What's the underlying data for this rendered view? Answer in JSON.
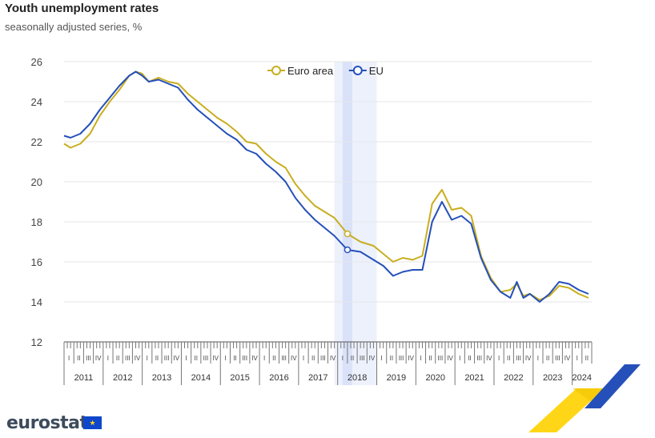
{
  "header": {
    "title": "Youth unemployment rates",
    "subtitle": "seasonally adjusted series, %"
  },
  "brand": {
    "logo_text": "eurostat",
    "flag_icon": "eu-flag-icon"
  },
  "colors": {
    "euro_area": "#c9ae1f",
    "eu": "#2550b9",
    "highlight": "#e6ecfb",
    "grid": "#e6e6e6"
  },
  "chart_data": {
    "type": "line",
    "title": "Youth unemployment rates",
    "subtitle": "seasonally adjusted series, %",
    "xlabel": "",
    "ylabel": "",
    "ylim": [
      12,
      26
    ],
    "yticks": [
      12,
      14,
      16,
      18,
      20,
      22,
      24,
      26
    ],
    "grid": true,
    "legend_position": "top-center",
    "x_start": "2011-01",
    "x_end": "2024-06",
    "years": [
      "2011",
      "2012",
      "2013",
      "2014",
      "2015",
      "2016",
      "2017",
      "2018",
      "2019",
      "2020",
      "2021",
      "2022",
      "2023",
      "2024"
    ],
    "quarters": [
      "I",
      "II",
      "III",
      "IV"
    ],
    "highlight": {
      "from": "2017-12",
      "to": "2018-12",
      "marker": "2018-04"
    },
    "series": [
      {
        "name": "Euro area",
        "color": "#c9ae1f",
        "points": [
          [
            "2011-01",
            21.9
          ],
          [
            "2011-03",
            21.7
          ],
          [
            "2011-06",
            21.9
          ],
          [
            "2011-09",
            22.4
          ],
          [
            "2011-12",
            23.3
          ],
          [
            "2012-03",
            24.0
          ],
          [
            "2012-06",
            24.6
          ],
          [
            "2012-09",
            25.3
          ],
          [
            "2012-11",
            25.5
          ],
          [
            "2013-01",
            25.4
          ],
          [
            "2013-03",
            25.0
          ],
          [
            "2013-06",
            25.2
          ],
          [
            "2013-09",
            25.0
          ],
          [
            "2013-12",
            24.9
          ],
          [
            "2014-03",
            24.4
          ],
          [
            "2014-06",
            24.0
          ],
          [
            "2014-09",
            23.6
          ],
          [
            "2014-12",
            23.2
          ],
          [
            "2015-03",
            22.9
          ],
          [
            "2015-06",
            22.5
          ],
          [
            "2015-09",
            22.0
          ],
          [
            "2015-12",
            21.9
          ],
          [
            "2016-03",
            21.4
          ],
          [
            "2016-06",
            21.0
          ],
          [
            "2016-09",
            20.7
          ],
          [
            "2016-12",
            19.9
          ],
          [
            "2017-03",
            19.3
          ],
          [
            "2017-06",
            18.8
          ],
          [
            "2017-09",
            18.5
          ],
          [
            "2017-12",
            18.2
          ],
          [
            "2018-04",
            17.4
          ],
          [
            "2018-08",
            17.0
          ],
          [
            "2018-12",
            16.8
          ],
          [
            "2019-03",
            16.4
          ],
          [
            "2019-06",
            16.0
          ],
          [
            "2019-09",
            16.2
          ],
          [
            "2019-12",
            16.1
          ],
          [
            "2020-03",
            16.3
          ],
          [
            "2020-06",
            18.9
          ],
          [
            "2020-09",
            19.6
          ],
          [
            "2020-12",
            18.6
          ],
          [
            "2021-03",
            18.7
          ],
          [
            "2021-06",
            18.3
          ],
          [
            "2021-09",
            16.3
          ],
          [
            "2021-12",
            15.2
          ],
          [
            "2022-03",
            14.5
          ],
          [
            "2022-06",
            14.6
          ],
          [
            "2022-08",
            14.9
          ],
          [
            "2022-10",
            14.3
          ],
          [
            "2022-12",
            14.4
          ],
          [
            "2023-03",
            14.1
          ],
          [
            "2023-06",
            14.3
          ],
          [
            "2023-09",
            14.8
          ],
          [
            "2023-12",
            14.7
          ],
          [
            "2024-03",
            14.4
          ],
          [
            "2024-06",
            14.2
          ]
        ]
      },
      {
        "name": "EU",
        "color": "#2550b9",
        "points": [
          [
            "2011-01",
            22.3
          ],
          [
            "2011-03",
            22.2
          ],
          [
            "2011-06",
            22.4
          ],
          [
            "2011-09",
            22.9
          ],
          [
            "2011-12",
            23.6
          ],
          [
            "2012-03",
            24.2
          ],
          [
            "2012-06",
            24.8
          ],
          [
            "2012-09",
            25.3
          ],
          [
            "2012-11",
            25.5
          ],
          [
            "2013-01",
            25.3
          ],
          [
            "2013-03",
            25.0
          ],
          [
            "2013-06",
            25.1
          ],
          [
            "2013-09",
            24.9
          ],
          [
            "2013-12",
            24.7
          ],
          [
            "2014-03",
            24.1
          ],
          [
            "2014-06",
            23.6
          ],
          [
            "2014-09",
            23.2
          ],
          [
            "2014-12",
            22.8
          ],
          [
            "2015-03",
            22.4
          ],
          [
            "2015-06",
            22.1
          ],
          [
            "2015-09",
            21.6
          ],
          [
            "2015-12",
            21.4
          ],
          [
            "2016-03",
            20.9
          ],
          [
            "2016-06",
            20.5
          ],
          [
            "2016-09",
            20.0
          ],
          [
            "2016-12",
            19.2
          ],
          [
            "2017-03",
            18.6
          ],
          [
            "2017-06",
            18.1
          ],
          [
            "2017-09",
            17.7
          ],
          [
            "2017-12",
            17.3
          ],
          [
            "2018-04",
            16.6
          ],
          [
            "2018-08",
            16.5
          ],
          [
            "2018-12",
            16.1
          ],
          [
            "2019-03",
            15.8
          ],
          [
            "2019-06",
            15.3
          ],
          [
            "2019-09",
            15.5
          ],
          [
            "2019-12",
            15.6
          ],
          [
            "2020-03",
            15.6
          ],
          [
            "2020-06",
            18.0
          ],
          [
            "2020-09",
            19.0
          ],
          [
            "2020-12",
            18.1
          ],
          [
            "2021-03",
            18.3
          ],
          [
            "2021-06",
            17.9
          ],
          [
            "2021-09",
            16.2
          ],
          [
            "2021-12",
            15.1
          ],
          [
            "2022-03",
            14.5
          ],
          [
            "2022-06",
            14.2
          ],
          [
            "2022-08",
            15.0
          ],
          [
            "2022-10",
            14.2
          ],
          [
            "2022-12",
            14.4
          ],
          [
            "2023-03",
            14.0
          ],
          [
            "2023-06",
            14.4
          ],
          [
            "2023-09",
            15.0
          ],
          [
            "2023-12",
            14.9
          ],
          [
            "2024-03",
            14.6
          ],
          [
            "2024-06",
            14.4
          ]
        ]
      }
    ]
  }
}
